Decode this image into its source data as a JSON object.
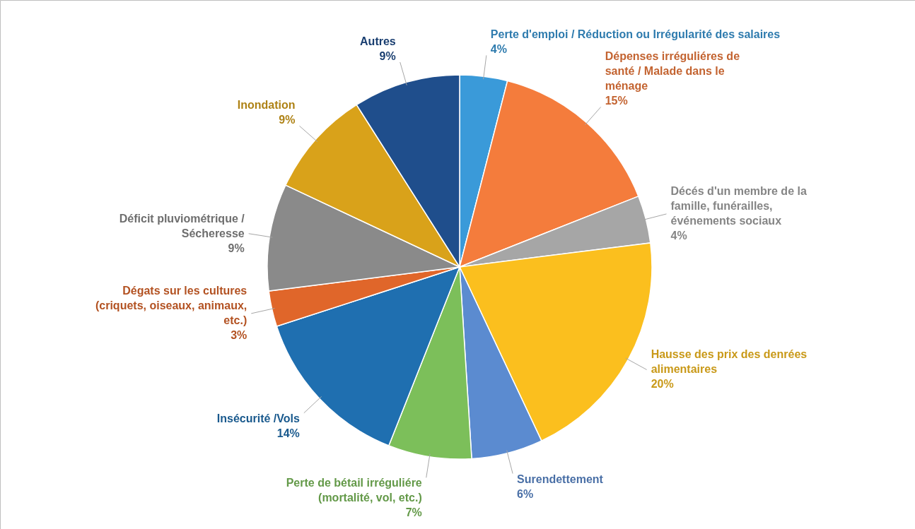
{
  "chart_data": {
    "type": "pie",
    "categories": [
      "Perte d'emploi / Réduction ou Irrégularité des salaires",
      "Dépenses irréguliéres de santé / Malade dans le ménage",
      "Décés d'un membre de la famille, funérailles, événements sociaux",
      "Hausse des prix des denrées alimentaires",
      "Surendettement",
      "Perte de bétail irréguliére (mortalité, vol, etc.)",
      "Insécurité /Vols",
      "Dégats sur les cultures (criquets, oiseaux, animaux, etc.)",
      "Déficit pluviométrique / Sécheresse",
      "Inondation",
      "Autres"
    ],
    "values": [
      4,
      15,
      4,
      20,
      6,
      7,
      14,
      3,
      9,
      9,
      9
    ],
    "value_labels": [
      "4%",
      "15%",
      "4%",
      "20%",
      "6%",
      "7%",
      "14%",
      "3%",
      "9%",
      "9%",
      "9%"
    ],
    "colors": [
      "#3a9ad9",
      "#f47c3c",
      "#a6a6a6",
      "#fbbf1e",
      "#5b8bd0",
      "#7cbf5a",
      "#1f6fb0",
      "#e0662a",
      "#8a8a8a",
      "#d9a21a",
      "#1f4e8c"
    ]
  }
}
